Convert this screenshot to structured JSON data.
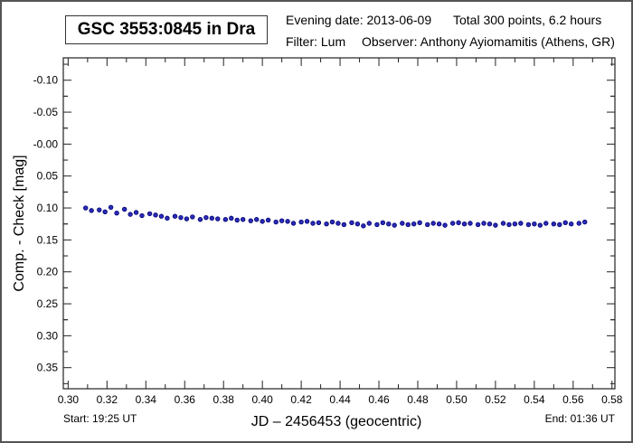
{
  "header": {
    "title": "GSC 3553:0845 in Dra",
    "evening_date": "Evening date: 2013-06-09",
    "total": "Total 300 points, 6.2 hours",
    "filter": "Filter: Lum",
    "observer": "Observer: Anthony Ayiomamitis (Athens, GR)"
  },
  "footer": {
    "start": "Start: 19:25 UT",
    "end": "End: 01:36 UT"
  },
  "chart_data": {
    "type": "scatter",
    "title": "GSC 3553:0845 in Dra",
    "xlabel": "JD – 2456453  (geocentric)",
    "ylabel": "Comp. - Check [mag]",
    "xlim": [
      0.2975,
      0.5815
    ],
    "ylim": [
      0.383,
      -0.135
    ],
    "y_inverted": true,
    "grid": false,
    "marker_color": "#2b2bb8",
    "marker_edge": "#000070",
    "xticks": [
      "0.30",
      "0.32",
      "0.34",
      "0.36",
      "0.38",
      "0.40",
      "0.42",
      "0.44",
      "0.46",
      "0.48",
      "0.50",
      "0.52",
      "0.54",
      "0.56",
      "0.58"
    ],
    "yticks": [
      "-0.10",
      "-0.05",
      "-0.00",
      "0.05",
      "0.10",
      "0.15",
      "0.20",
      "0.25",
      "0.30",
      "0.35"
    ],
    "x": [
      0.309,
      0.312,
      0.316,
      0.319,
      0.322,
      0.325,
      0.329,
      0.332,
      0.335,
      0.338,
      0.342,
      0.345,
      0.348,
      0.351,
      0.355,
      0.358,
      0.361,
      0.364,
      0.368,
      0.371,
      0.374,
      0.377,
      0.381,
      0.384,
      0.387,
      0.39,
      0.394,
      0.397,
      0.4,
      0.403,
      0.407,
      0.41,
      0.413,
      0.416,
      0.42,
      0.423,
      0.426,
      0.429,
      0.433,
      0.436,
      0.439,
      0.442,
      0.446,
      0.449,
      0.452,
      0.455,
      0.459,
      0.462,
      0.465,
      0.468,
      0.472,
      0.475,
      0.478,
      0.481,
      0.485,
      0.488,
      0.491,
      0.494,
      0.498,
      0.501,
      0.504,
      0.507,
      0.511,
      0.514,
      0.517,
      0.52,
      0.524,
      0.527,
      0.53,
      0.533,
      0.537,
      0.54,
      0.543,
      0.546,
      0.55,
      0.553,
      0.556,
      0.559,
      0.563,
      0.566
    ],
    "y": [
      0.1,
      0.104,
      0.103,
      0.106,
      0.099,
      0.108,
      0.102,
      0.11,
      0.107,
      0.112,
      0.109,
      0.111,
      0.113,
      0.116,
      0.113,
      0.115,
      0.117,
      0.114,
      0.118,
      0.115,
      0.116,
      0.117,
      0.118,
      0.116,
      0.119,
      0.118,
      0.12,
      0.118,
      0.121,
      0.119,
      0.122,
      0.12,
      0.121,
      0.124,
      0.122,
      0.121,
      0.124,
      0.123,
      0.125,
      0.122,
      0.124,
      0.126,
      0.123,
      0.125,
      0.128,
      0.124,
      0.126,
      0.123,
      0.125,
      0.127,
      0.124,
      0.126,
      0.125,
      0.123,
      0.126,
      0.124,
      0.125,
      0.127,
      0.124,
      0.123,
      0.125,
      0.124,
      0.126,
      0.124,
      0.125,
      0.127,
      0.124,
      0.126,
      0.125,
      0.124,
      0.126,
      0.125,
      0.127,
      0.124,
      0.125,
      0.126,
      0.123,
      0.125,
      0.124,
      0.122
    ]
  }
}
